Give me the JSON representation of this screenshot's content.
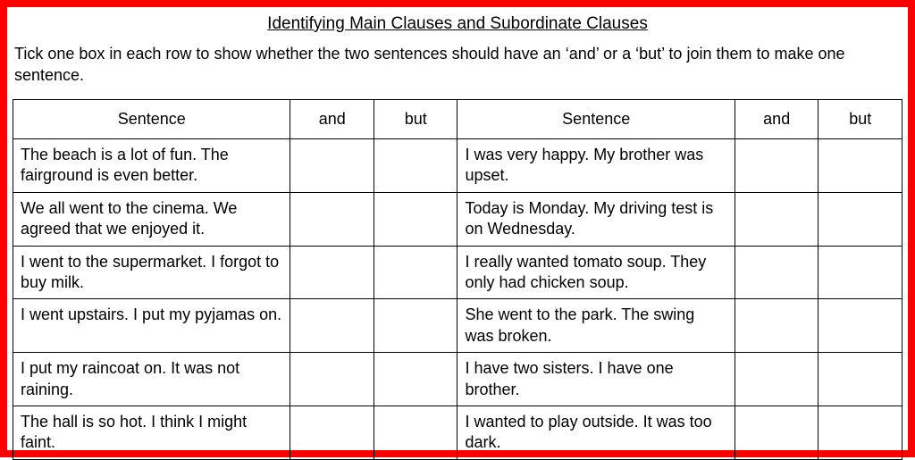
{
  "colors": {
    "frame_border": "#ff0000",
    "table_border": "#000000",
    "background": "#ffffff",
    "text": "#000000"
  },
  "typography": {
    "family": "Comic Sans MS",
    "title_fontsize": 19,
    "body_fontsize": 18
  },
  "title": "Identifying Main Clauses and Subordinate Clauses",
  "instructions": "Tick one box in each row to show whether the two sentences should have an ‘and’ or a ‘but’ to join them to make one sentence.",
  "table": {
    "headers": {
      "sentence": "Sentence",
      "and": "and",
      "but": "but"
    },
    "column_widths_pct": {
      "sentence": 31.2,
      "option": 9.4
    },
    "left_rows": [
      "The beach is a lot of fun. The fairground is even better.",
      "We all went to the cinema. We agreed that we enjoyed it.",
      "I went to the supermarket. I forgot to buy milk.",
      "I went upstairs. I put my pyjamas on.",
      "I put my raincoat on. It was not raining.",
      "The hall is so hot. I think I might faint."
    ],
    "right_rows": [
      "I was very happy. My brother was upset.",
      "Today is Monday. My driving test is on Wednesday.",
      "I really wanted tomato soup. They only had chicken soup.",
      "She went to the park. The swing was broken.",
      "I have two sisters. I have one brother.",
      "I wanted to play outside. It was too dark."
    ]
  }
}
